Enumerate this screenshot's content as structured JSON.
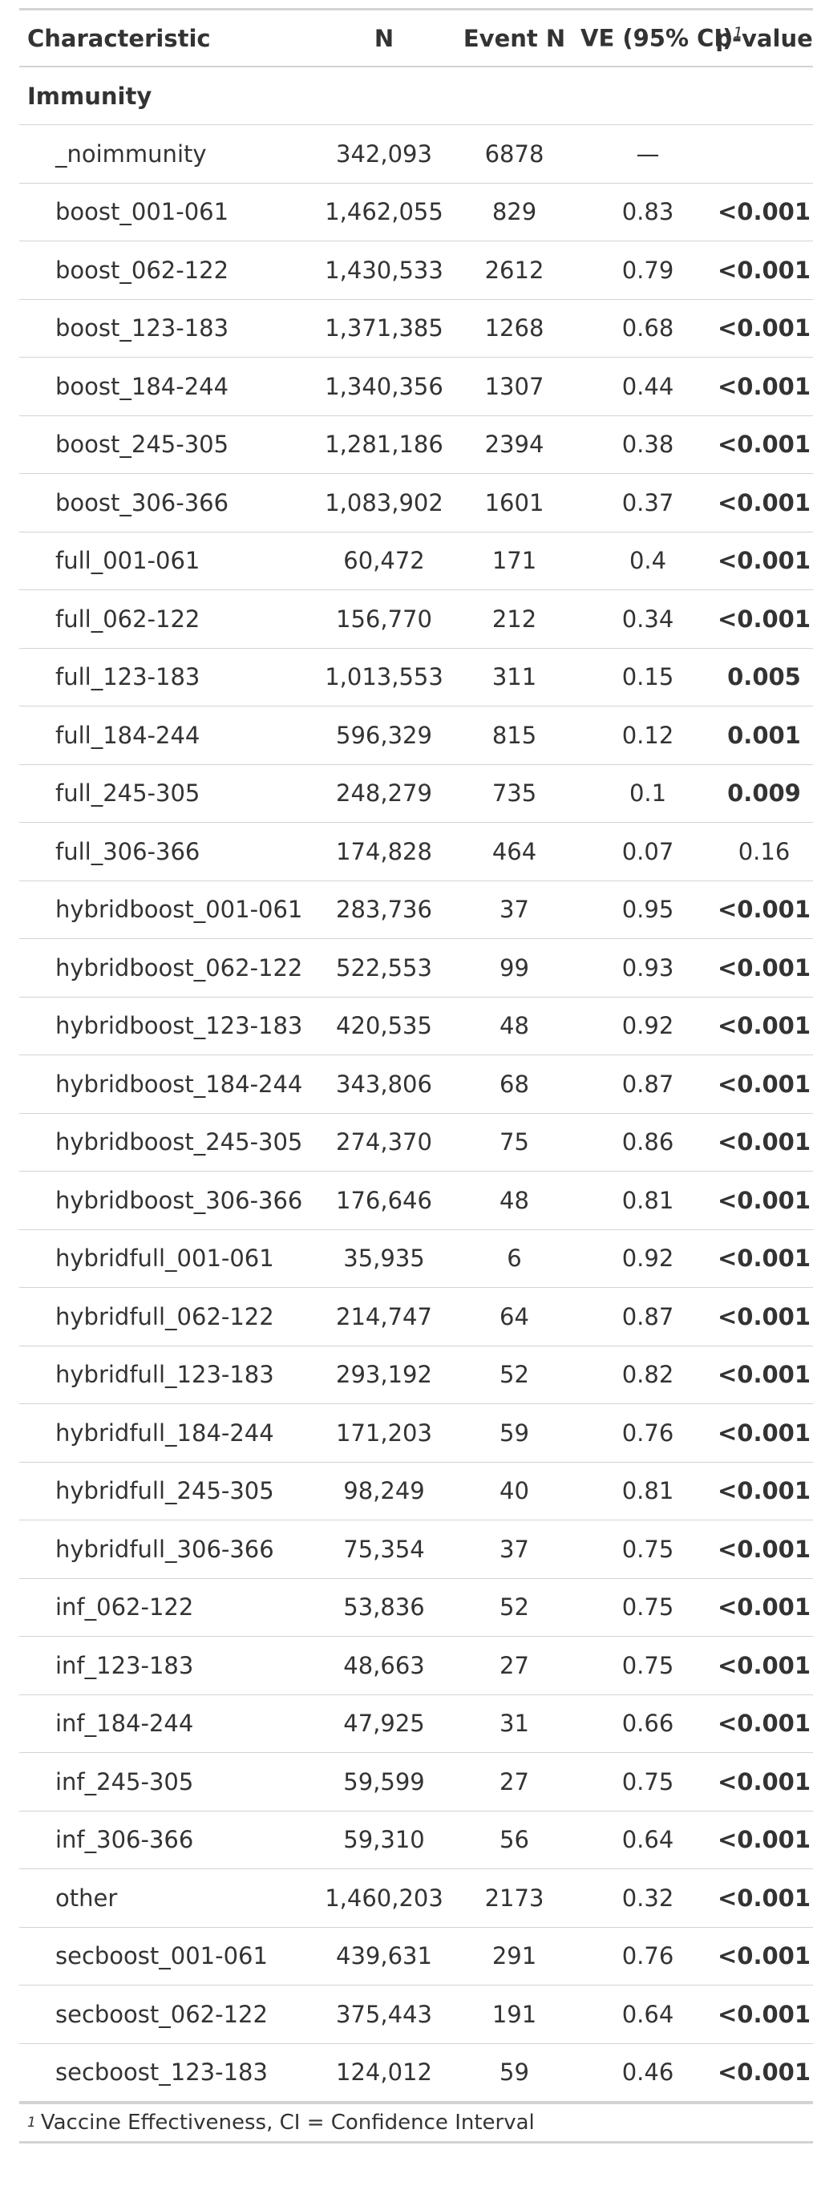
{
  "header": {
    "characteristic": "Characteristic",
    "n": "N",
    "event_n": "Event N",
    "ve": "VE (95% CI)",
    "ve_footnote_mark": "1",
    "p": "p-value"
  },
  "group_label": "Immunity",
  "rows": [
    {
      "label": "_noimmunity",
      "n": "342,093",
      "events": "6878",
      "ve": "—",
      "p": "",
      "p_bold": false
    },
    {
      "label": "boost_001-061",
      "n": "1,462,055",
      "events": "829",
      "ve": "0.83",
      "p": "<0.001",
      "p_bold": true
    },
    {
      "label": "boost_062-122",
      "n": "1,430,533",
      "events": "2612",
      "ve": "0.79",
      "p": "<0.001",
      "p_bold": true
    },
    {
      "label": "boost_123-183",
      "n": "1,371,385",
      "events": "1268",
      "ve": "0.68",
      "p": "<0.001",
      "p_bold": true
    },
    {
      "label": "boost_184-244",
      "n": "1,340,356",
      "events": "1307",
      "ve": "0.44",
      "p": "<0.001",
      "p_bold": true
    },
    {
      "label": "boost_245-305",
      "n": "1,281,186",
      "events": "2394",
      "ve": "0.38",
      "p": "<0.001",
      "p_bold": true
    },
    {
      "label": "boost_306-366",
      "n": "1,083,902",
      "events": "1601",
      "ve": "0.37",
      "p": "<0.001",
      "p_bold": true
    },
    {
      "label": "full_001-061",
      "n": "60,472",
      "events": "171",
      "ve": "0.4",
      "p": "<0.001",
      "p_bold": true
    },
    {
      "label": "full_062-122",
      "n": "156,770",
      "events": "212",
      "ve": "0.34",
      "p": "<0.001",
      "p_bold": true
    },
    {
      "label": "full_123-183",
      "n": "1,013,553",
      "events": "311",
      "ve": "0.15",
      "p": "0.005",
      "p_bold": true
    },
    {
      "label": "full_184-244",
      "n": "596,329",
      "events": "815",
      "ve": "0.12",
      "p": "0.001",
      "p_bold": true
    },
    {
      "label": "full_245-305",
      "n": "248,279",
      "events": "735",
      "ve": "0.1",
      "p": "0.009",
      "p_bold": true
    },
    {
      "label": "full_306-366",
      "n": "174,828",
      "events": "464",
      "ve": "0.07",
      "p": "0.16",
      "p_bold": false
    },
    {
      "label": "hybridboost_001-061",
      "n": "283,736",
      "events": "37",
      "ve": "0.95",
      "p": "<0.001",
      "p_bold": true
    },
    {
      "label": "hybridboost_062-122",
      "n": "522,553",
      "events": "99",
      "ve": "0.93",
      "p": "<0.001",
      "p_bold": true
    },
    {
      "label": "hybridboost_123-183",
      "n": "420,535",
      "events": "48",
      "ve": "0.92",
      "p": "<0.001",
      "p_bold": true
    },
    {
      "label": "hybridboost_184-244",
      "n": "343,806",
      "events": "68",
      "ve": "0.87",
      "p": "<0.001",
      "p_bold": true
    },
    {
      "label": "hybridboost_245-305",
      "n": "274,370",
      "events": "75",
      "ve": "0.86",
      "p": "<0.001",
      "p_bold": true
    },
    {
      "label": "hybridboost_306-366",
      "n": "176,646",
      "events": "48",
      "ve": "0.81",
      "p": "<0.001",
      "p_bold": true
    },
    {
      "label": "hybridfull_001-061",
      "n": "35,935",
      "events": "6",
      "ve": "0.92",
      "p": "<0.001",
      "p_bold": true
    },
    {
      "label": "hybridfull_062-122",
      "n": "214,747",
      "events": "64",
      "ve": "0.87",
      "p": "<0.001",
      "p_bold": true
    },
    {
      "label": "hybridfull_123-183",
      "n": "293,192",
      "events": "52",
      "ve": "0.82",
      "p": "<0.001",
      "p_bold": true
    },
    {
      "label": "hybridfull_184-244",
      "n": "171,203",
      "events": "59",
      "ve": "0.76",
      "p": "<0.001",
      "p_bold": true
    },
    {
      "label": "hybridfull_245-305",
      "n": "98,249",
      "events": "40",
      "ve": "0.81",
      "p": "<0.001",
      "p_bold": true
    },
    {
      "label": "hybridfull_306-366",
      "n": "75,354",
      "events": "37",
      "ve": "0.75",
      "p": "<0.001",
      "p_bold": true
    },
    {
      "label": "inf_062-122",
      "n": "53,836",
      "events": "52",
      "ve": "0.75",
      "p": "<0.001",
      "p_bold": true
    },
    {
      "label": "inf_123-183",
      "n": "48,663",
      "events": "27",
      "ve": "0.75",
      "p": "<0.001",
      "p_bold": true
    },
    {
      "label": "inf_184-244",
      "n": "47,925",
      "events": "31",
      "ve": "0.66",
      "p": "<0.001",
      "p_bold": true
    },
    {
      "label": "inf_245-305",
      "n": "59,599",
      "events": "27",
      "ve": "0.75",
      "p": "<0.001",
      "p_bold": true
    },
    {
      "label": "inf_306-366",
      "n": "59,310",
      "events": "56",
      "ve": "0.64",
      "p": "<0.001",
      "p_bold": true
    },
    {
      "label": "other",
      "n": "1,460,203",
      "events": "2173",
      "ve": "0.32",
      "p": "<0.001",
      "p_bold": true
    },
    {
      "label": "secboost_001-061",
      "n": "439,631",
      "events": "291",
      "ve": "0.76",
      "p": "<0.001",
      "p_bold": true
    },
    {
      "label": "secboost_062-122",
      "n": "375,443",
      "events": "191",
      "ve": "0.64",
      "p": "<0.001",
      "p_bold": true
    },
    {
      "label": "secboost_123-183",
      "n": "124,012",
      "events": "59",
      "ve": "0.46",
      "p": "<0.001",
      "p_bold": true
    }
  ],
  "footnote": {
    "mark": "1",
    "text": "Vaccine Effectiveness, CI = Confidence Interval"
  }
}
